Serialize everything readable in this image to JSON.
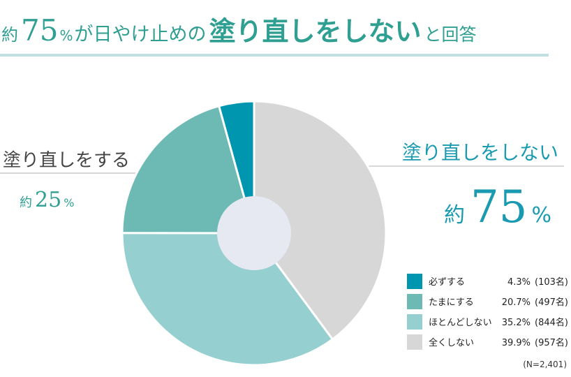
{
  "chart_data": {
    "type": "pie",
    "title_parts": [
      "約",
      "75",
      "%",
      "が日やけ止めの",
      "塗り直しをしない",
      "と回答"
    ],
    "categories": [
      "必ずする",
      "たまにする",
      "ほとんどしない",
      "全くしない"
    ],
    "values": [
      4.3,
      20.7,
      35.2,
      39.9
    ],
    "value_labels": [
      "4.3%",
      "20.7%",
      "35.2%",
      "39.9%"
    ],
    "count_labels": [
      "(103名)",
      "(497名)",
      "(844名)",
      "(957名)"
    ],
    "colors": [
      "#0096b0",
      "#6cbab3",
      "#95cfcf",
      "#d8d7d8"
    ],
    "note": "(N=2,401)",
    "annotations": [
      {
        "label": "塗り直しをする",
        "prefix": "約",
        "number": 25,
        "unit": "%"
      },
      {
        "label": "塗り直しをしない",
        "prefix": "約",
        "number": 75,
        "unit": "%"
      }
    ]
  }
}
